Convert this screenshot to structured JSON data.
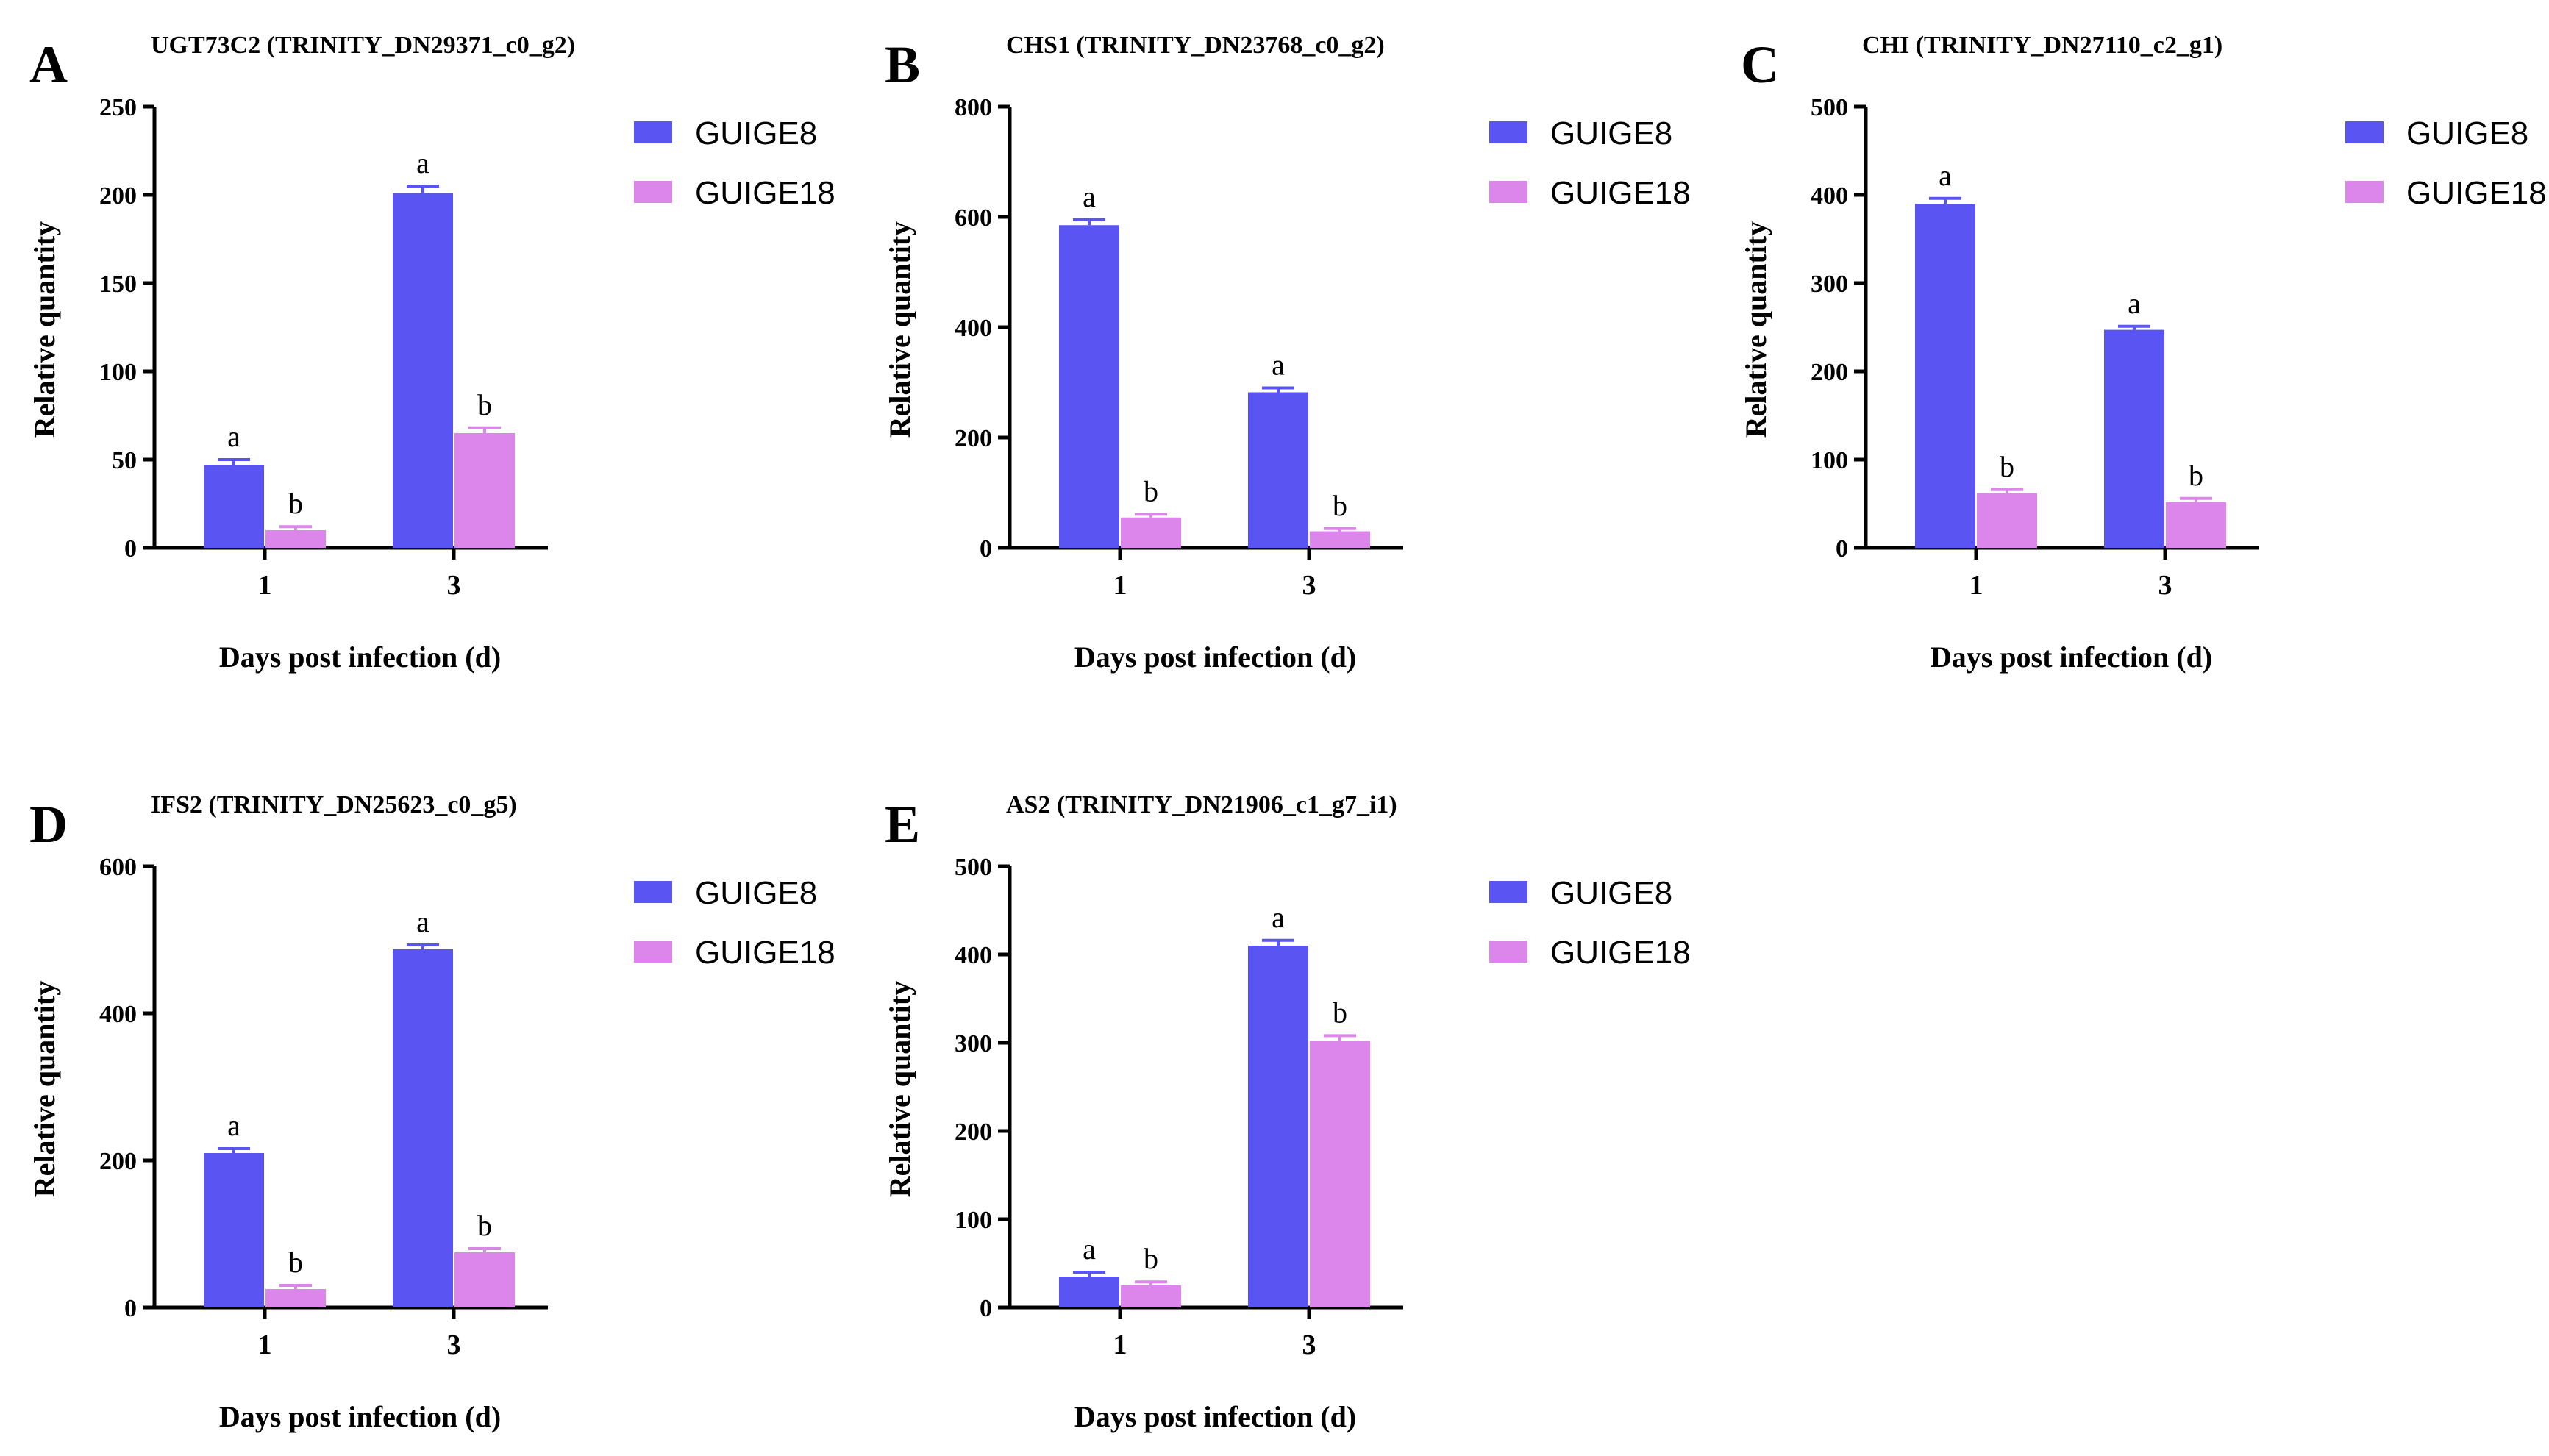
{
  "colors": {
    "GUIGE8": "#5a55f2",
    "GUIGE18": "#dc86ec",
    "axis": "#000000"
  },
  "legend": [
    "GUIGE8",
    "GUIGE18"
  ],
  "chart_data": [
    {
      "type": "bar",
      "letter": "A",
      "title": "UGT73C2 (TRINITY_DN29371_c0_g2)",
      "xlabel": "Days post infection (d)",
      "ylabel": "Relative quantity",
      "categories": [
        "1",
        "3"
      ],
      "ylim": [
        0,
        250
      ],
      "yticks": [
        0,
        50,
        100,
        150,
        200,
        250
      ],
      "series": [
        {
          "name": "GUIGE8",
          "values": [
            47,
            201
          ],
          "errors": [
            3,
            4
          ],
          "sig": [
            "a",
            "a"
          ]
        },
        {
          "name": "GUIGE18",
          "values": [
            10,
            65
          ],
          "errors": [
            2,
            3
          ],
          "sig": [
            "b",
            "b"
          ]
        }
      ]
    },
    {
      "type": "bar",
      "letter": "B",
      "title": "CHS1 (TRINITY_DN23768_c0_g2)",
      "xlabel": "Days post infection (d)",
      "ylabel": "Relative quantity",
      "categories": [
        "1",
        "3"
      ],
      "ylim": [
        0,
        800
      ],
      "yticks": [
        0,
        200,
        400,
        600,
        800
      ],
      "series": [
        {
          "name": "GUIGE8",
          "values": [
            585,
            282
          ],
          "errors": [
            10,
            8
          ],
          "sig": [
            "a",
            "a"
          ]
        },
        {
          "name": "GUIGE18",
          "values": [
            55,
            30
          ],
          "errors": [
            6,
            5
          ],
          "sig": [
            "b",
            "b"
          ]
        }
      ]
    },
    {
      "type": "bar",
      "letter": "C",
      "title": "CHI (TRINITY_DN27110_c2_g1)",
      "xlabel": "Days post infection (d)",
      "ylabel": "Relative quantity",
      "categories": [
        "1",
        "3"
      ],
      "ylim": [
        0,
        500
      ],
      "yticks": [
        0,
        100,
        200,
        300,
        400,
        500
      ],
      "series": [
        {
          "name": "GUIGE8",
          "values": [
            390,
            247
          ],
          "errors": [
            6,
            4
          ],
          "sig": [
            "a",
            "a"
          ]
        },
        {
          "name": "GUIGE18",
          "values": [
            62,
            52
          ],
          "errors": [
            4,
            4
          ],
          "sig": [
            "b",
            "b"
          ]
        }
      ]
    },
    {
      "type": "bar",
      "letter": "D",
      "title": "IFS2 (TRINITY_DN25623_c0_g5)",
      "xlabel": "Days post infection (d)",
      "ylabel": "Relative quantity",
      "categories": [
        "1",
        "3"
      ],
      "ylim": [
        0,
        600
      ],
      "yticks": [
        0,
        200,
        400,
        600
      ],
      "series": [
        {
          "name": "GUIGE8",
          "values": [
            210,
            487
          ],
          "errors": [
            6,
            6
          ],
          "sig": [
            "a",
            "a"
          ]
        },
        {
          "name": "GUIGE18",
          "values": [
            25,
            75
          ],
          "errors": [
            5,
            5
          ],
          "sig": [
            "b",
            "b"
          ]
        }
      ]
    },
    {
      "type": "bar",
      "letter": "E",
      "title": "AS2 (TRINITY_DN21906_c1_g7_i1)",
      "xlabel": "Days post infection (d)",
      "ylabel": "Relative quantity",
      "categories": [
        "1",
        "3"
      ],
      "ylim": [
        0,
        500
      ],
      "yticks": [
        0,
        100,
        200,
        300,
        400,
        500
      ],
      "series": [
        {
          "name": "GUIGE8",
          "values": [
            35,
            410
          ],
          "errors": [
            5,
            6
          ],
          "sig": [
            "a",
            "a"
          ]
        },
        {
          "name": "GUIGE18",
          "values": [
            25,
            302
          ],
          "errors": [
            4,
            6
          ],
          "sig": [
            "b",
            "b"
          ]
        }
      ]
    }
  ]
}
